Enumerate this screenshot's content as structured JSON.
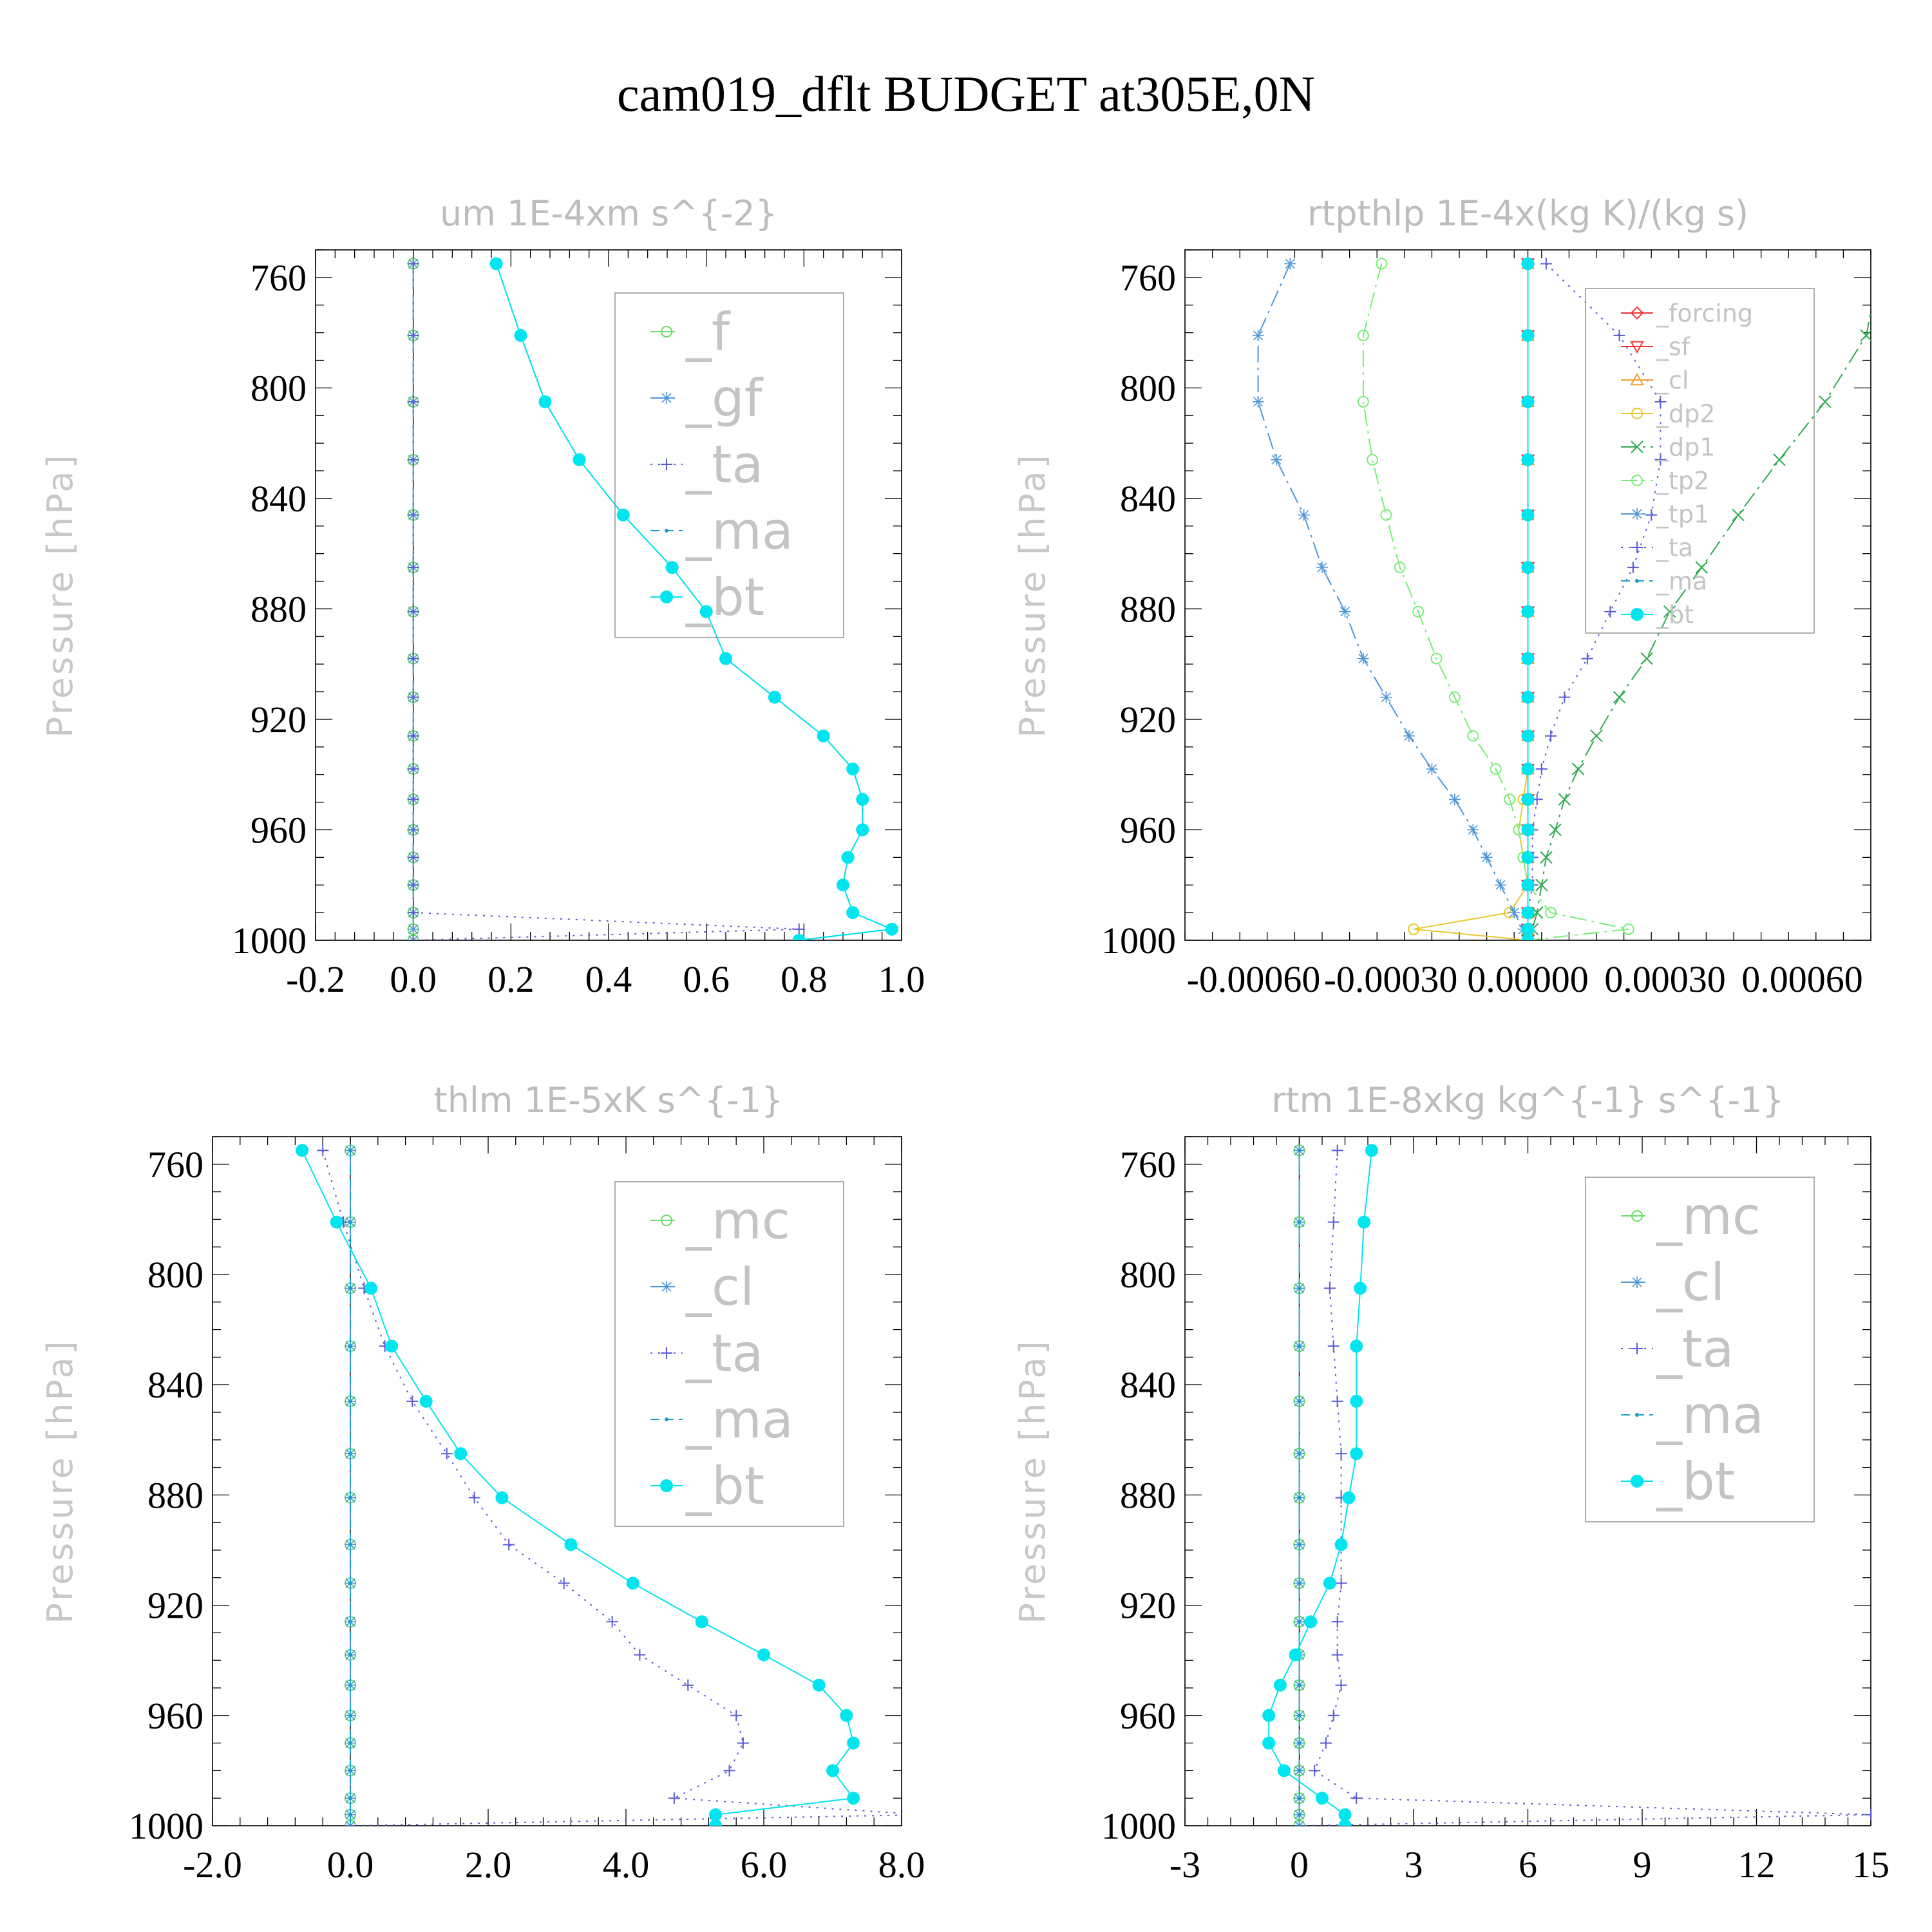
{
  "figure": {
    "title": "cam019_dflt  BUDGET at305E,0N"
  },
  "colors": {
    "green": "#66dd66",
    "steel": "#4f96d6",
    "purple": "#5b5bd6",
    "teal": "#1aa0c8",
    "cyan": "#00e5ee",
    "red": "#ee3333",
    "orange": "#f0a030",
    "yellow": "#e8c830",
    "darkgreen": "#2fa94f",
    "lightgreen": "#77ee77",
    "axis": "#000000",
    "muted_text": "#c0c0c0"
  },
  "chart_data": [
    {
      "id": "um",
      "type": "line",
      "title": "um   1E-4xm s^{-2}",
      "ylabel": "Pressure [hPa]",
      "xlim": [
        -0.2,
        1.0
      ],
      "ylim": [
        750,
        1000
      ],
      "y_inverted": true,
      "xticks": [
        -0.2,
        0.0,
        0.2,
        0.4,
        0.6,
        0.8,
        1.0
      ],
      "xtick_labels": [
        "-0.2",
        "0.0",
        "0.2",
        "0.4",
        "0.6",
        "0.8",
        "1.0"
      ],
      "yticks": [
        760,
        800,
        840,
        880,
        920,
        960,
        1000
      ],
      "ytick_labels": [
        "760",
        "800",
        "840",
        "880",
        "920",
        "960",
        "1000"
      ],
      "zero_line": true,
      "legend": {
        "position": "top-right",
        "entries": [
          "_f",
          "_gf",
          "_ta",
          "_ma",
          "_bt"
        ]
      },
      "pressure_levels": [
        755,
        781,
        805,
        826,
        846,
        865,
        881,
        898,
        912,
        926,
        938,
        949,
        960,
        970,
        980,
        990,
        996,
        1000
      ],
      "series": [
        {
          "name": "_f",
          "color": "green",
          "dash": "long",
          "marker": "circle-open",
          "values": [
            0,
            0,
            0,
            0,
            0,
            0,
            0,
            0,
            0,
            0,
            0,
            0,
            0,
            0,
            0,
            0,
            0,
            0
          ]
        },
        {
          "name": "_gf",
          "color": "steel",
          "dash": "long",
          "marker": "asterisk",
          "values": [
            0,
            0,
            0,
            0,
            0,
            0,
            0,
            0,
            0,
            0,
            0,
            0,
            0,
            0,
            0,
            0,
            0,
            0
          ]
        },
        {
          "name": "_ta",
          "color": "purple",
          "dash": "dot",
          "marker": "plus",
          "values": [
            0,
            0,
            0,
            0,
            0,
            0,
            0,
            0,
            0,
            0,
            0,
            0,
            0,
            0,
            0,
            0,
            0.79,
            0
          ]
        },
        {
          "name": "_ma",
          "color": "teal",
          "dash": "dash",
          "marker": "dot",
          "values": [
            0.17,
            0.22,
            0.27,
            0.34,
            0.43,
            0.53,
            0.6,
            0.64,
            0.74,
            0.84,
            0.9,
            0.92,
            0.92,
            0.89,
            0.88,
            0.9,
            0.98,
            0.79
          ]
        },
        {
          "name": "_bt",
          "color": "cyan",
          "dash": "solid",
          "marker": "disc",
          "values": [
            0.17,
            0.22,
            0.27,
            0.34,
            0.43,
            0.53,
            0.6,
            0.64,
            0.74,
            0.84,
            0.9,
            0.92,
            0.92,
            0.89,
            0.88,
            0.9,
            0.98,
            0.79
          ]
        }
      ]
    },
    {
      "id": "rtpthlp",
      "type": "line",
      "title": "rtpthlp   1E-4x(kg K)/(kg s)",
      "ylabel": "Pressure [hPa]",
      "xlim": [
        -0.00075,
        0.00075
      ],
      "ylim": [
        750,
        1000
      ],
      "y_inverted": true,
      "xticks": [
        -0.0006,
        -0.0003,
        0.0,
        0.0003,
        0.0006
      ],
      "xtick_labels": [
        "-0.00060",
        "-0.00030",
        "0.00000",
        "0.00030",
        "0.00060"
      ],
      "yticks": [
        760,
        800,
        840,
        880,
        920,
        960,
        1000
      ],
      "ytick_labels": [
        "760",
        "800",
        "840",
        "880",
        "920",
        "960",
        "1000"
      ],
      "zero_line": true,
      "legend": {
        "position": "top-right",
        "entries": [
          "_forcing",
          "_sf",
          "_cl",
          "_dp2",
          "_dp1",
          "_tp2",
          "_tp1",
          "_ta",
          "_ma",
          "_bt"
        ]
      },
      "pressure_levels": [
        755,
        781,
        805,
        826,
        846,
        865,
        881,
        898,
        912,
        926,
        938,
        949,
        960,
        970,
        980,
        990,
        996,
        1000
      ],
      "series": [
        {
          "name": "_forcing",
          "color": "red",
          "dash": "solid",
          "marker": "diamond",
          "values": [
            0,
            0,
            0,
            0,
            0,
            0,
            0,
            0,
            0,
            0,
            0,
            0,
            0,
            0,
            0,
            0,
            0,
            0
          ]
        },
        {
          "name": "_sf",
          "color": "red",
          "dash": "solid",
          "marker": "triangle-down",
          "values": [
            0,
            0,
            0,
            0,
            0,
            0,
            0,
            0,
            0,
            0,
            0,
            0,
            0,
            0,
            0,
            0,
            0,
            0
          ]
        },
        {
          "name": "_cl",
          "color": "orange",
          "dash": "solid",
          "marker": "triangle-up",
          "values": [
            0,
            0,
            0,
            0,
            0,
            0,
            0,
            0,
            0,
            0,
            0,
            0,
            0,
            0,
            0,
            0,
            0,
            0
          ]
        },
        {
          "name": "_dp2",
          "color": "yellow",
          "dash": "solid",
          "marker": "circle-open",
          "values": [
            0,
            0,
            0,
            0,
            0,
            0,
            0,
            0,
            0,
            0,
            0,
            -1e-05,
            -2e-05,
            -1e-05,
            0,
            -4e-05,
            -0.00025,
            0
          ]
        },
        {
          "name": "_dp1",
          "color": "darkgreen",
          "dash": "dashdot",
          "marker": "cross",
          "values": [
            0.00077,
            0.00074,
            0.00065,
            0.00055,
            0.00046,
            0.00038,
            0.00031,
            0.00026,
            0.0002,
            0.00015,
            0.00011,
            8e-05,
            6e-05,
            4e-05,
            3e-05,
            2e-05,
            1e-05,
            0
          ]
        },
        {
          "name": "_tp2",
          "color": "lightgreen",
          "dash": "dashdot",
          "marker": "circle-open",
          "values": [
            -0.00032,
            -0.00036,
            -0.00036,
            -0.00034,
            -0.00031,
            -0.00028,
            -0.00024,
            -0.0002,
            -0.00016,
            -0.00012,
            -7e-05,
            -4e-05,
            -2e-05,
            -1e-05,
            0,
            5e-05,
            0.00022,
            0
          ]
        },
        {
          "name": "_tp1",
          "color": "steel",
          "dash": "dashdot",
          "marker": "asterisk",
          "values": [
            -0.00052,
            -0.00059,
            -0.00059,
            -0.00055,
            -0.00049,
            -0.00045,
            -0.0004,
            -0.00036,
            -0.00031,
            -0.00026,
            -0.00021,
            -0.00016,
            -0.00012,
            -9e-05,
            -6e-05,
            -3e-05,
            -1e-05,
            0
          ]
        },
        {
          "name": "_ta",
          "color": "purple",
          "dash": "dot",
          "marker": "plus",
          "values": [
            4e-05,
            0.0002,
            0.00029,
            0.00029,
            0.00027,
            0.00023,
            0.00018,
            0.00013,
            8e-05,
            5e-05,
            3e-05,
            2e-05,
            1e-05,
            1e-05,
            1e-05,
            0,
            0,
            0
          ]
        },
        {
          "name": "_ma",
          "color": "teal",
          "dash": "dash",
          "marker": "dot",
          "values": [
            0,
            0,
            0,
            0,
            0,
            0,
            0,
            0,
            0,
            0,
            0,
            0,
            0,
            0,
            0,
            0,
            0,
            0
          ]
        },
        {
          "name": "_bt",
          "color": "cyan",
          "dash": "solid",
          "marker": "disc",
          "values": [
            0,
            0,
            0,
            0,
            0,
            0,
            0,
            0,
            0,
            0,
            0,
            0,
            0,
            0,
            0,
            0,
            0,
            0
          ]
        }
      ]
    },
    {
      "id": "thlm",
      "type": "line",
      "title": "thlm   1E-5xK s^{-1}",
      "ylabel": "Pressure [hPa]",
      "xlim": [
        -2.0,
        8.0
      ],
      "ylim": [
        750,
        1000
      ],
      "y_inverted": true,
      "xticks": [
        -2.0,
        0.0,
        2.0,
        4.0,
        6.0,
        8.0
      ],
      "xtick_labels": [
        "-2.0",
        "0.0",
        "2.0",
        "4.0",
        "6.0",
        "8.0"
      ],
      "yticks": [
        760,
        800,
        840,
        880,
        920,
        960,
        1000
      ],
      "ytick_labels": [
        "760",
        "800",
        "840",
        "880",
        "920",
        "960",
        "1000"
      ],
      "zero_line": true,
      "legend": {
        "position": "top-right",
        "entries": [
          "_mc",
          "_cl",
          "_ta",
          "_ma",
          "_bt"
        ]
      },
      "pressure_levels": [
        755,
        781,
        805,
        826,
        846,
        865,
        881,
        898,
        912,
        926,
        938,
        949,
        960,
        970,
        980,
        990,
        996,
        1000
      ],
      "series": [
        {
          "name": "_mc",
          "color": "green",
          "dash": "long",
          "marker": "circle-open",
          "values": [
            0,
            0,
            0,
            0,
            0,
            0,
            0,
            0,
            0,
            0,
            0,
            0,
            0,
            0,
            0,
            0,
            0,
            0
          ]
        },
        {
          "name": "_cl",
          "color": "steel",
          "dash": "long",
          "marker": "asterisk",
          "values": [
            0,
            0,
            0,
            0,
            0,
            0,
            0,
            0,
            0,
            0,
            0,
            0,
            0,
            0,
            0,
            0,
            0,
            0
          ]
        },
        {
          "name": "_ta",
          "color": "purple",
          "dash": "dot",
          "marker": "plus",
          "values": [
            -0.4,
            -0.1,
            0.2,
            0.5,
            0.9,
            1.4,
            1.8,
            2.3,
            3.1,
            3.8,
            4.2,
            4.9,
            5.6,
            5.7,
            5.5,
            4.7,
            8.3,
            0
          ]
        },
        {
          "name": "_ma",
          "color": "teal",
          "dash": "dash",
          "marker": "dot",
          "values": [
            0,
            0,
            0,
            0,
            0,
            0,
            0,
            0,
            0,
            0,
            0,
            0,
            0,
            0,
            0,
            0,
            0,
            0
          ]
        },
        {
          "name": "_bt",
          "color": "cyan",
          "dash": "solid",
          "marker": "disc",
          "values": [
            -0.7,
            -0.2,
            0.3,
            0.6,
            1.1,
            1.6,
            2.2,
            3.2,
            4.1,
            5.1,
            6.0,
            6.8,
            7.2,
            7.3,
            7.0,
            7.3,
            5.3,
            5.3
          ]
        }
      ]
    },
    {
      "id": "rtm",
      "type": "line",
      "title": "rtm   1E-8xkg kg^{-1} s^{-1}",
      "ylabel": "Pressure [hPa]",
      "xlim": [
        -3,
        15
      ],
      "ylim": [
        750,
        1000
      ],
      "y_inverted": true,
      "xticks": [
        -3,
        0,
        3,
        6,
        9,
        12,
        15
      ],
      "xtick_labels": [
        "-3",
        "0",
        "3",
        "6",
        "9",
        "12",
        "15"
      ],
      "yticks": [
        760,
        800,
        840,
        880,
        920,
        960,
        1000
      ],
      "ytick_labels": [
        "760",
        "800",
        "840",
        "880",
        "920",
        "960",
        "1000"
      ],
      "zero_line": true,
      "legend": {
        "position": "top-right",
        "entries": [
          "_mc",
          "_cl",
          "_ta",
          "_ma",
          "_bt"
        ]
      },
      "pressure_levels": [
        755,
        781,
        805,
        826,
        846,
        865,
        881,
        898,
        912,
        926,
        938,
        949,
        960,
        970,
        980,
        990,
        996,
        1000
      ],
      "series": [
        {
          "name": "_mc",
          "color": "green",
          "dash": "long",
          "marker": "circle-open",
          "values": [
            0,
            0,
            0,
            0,
            0,
            0,
            0,
            0,
            0,
            0,
            0,
            0,
            0,
            0,
            0,
            0,
            0,
            0
          ]
        },
        {
          "name": "_cl",
          "color": "steel",
          "dash": "long",
          "marker": "asterisk",
          "values": [
            0,
            0,
            0,
            0,
            0,
            0,
            0,
            0,
            0,
            0,
            0,
            0,
            0,
            0,
            0,
            0,
            0,
            0
          ]
        },
        {
          "name": "_ta",
          "color": "purple",
          "dash": "dot",
          "marker": "plus",
          "values": [
            1.0,
            0.9,
            0.8,
            0.9,
            1.0,
            1.1,
            1.1,
            1.1,
            1.1,
            1.0,
            1.0,
            1.1,
            0.9,
            0.7,
            0.4,
            1.5,
            15.0,
            0
          ]
        },
        {
          "name": "_ma",
          "color": "teal",
          "dash": "dash",
          "marker": "dot",
          "values": [
            0,
            0,
            0,
            0,
            0,
            0,
            0,
            0,
            0,
            0,
            0,
            0,
            0,
            0,
            0,
            0,
            0,
            0
          ]
        },
        {
          "name": "_bt",
          "color": "cyan",
          "dash": "solid",
          "marker": "disc",
          "values": [
            1.9,
            1.7,
            1.6,
            1.5,
            1.5,
            1.5,
            1.3,
            1.1,
            0.8,
            0.3,
            -0.1,
            -0.5,
            -0.8,
            -0.8,
            -0.4,
            0.6,
            1.2,
            1.2
          ]
        }
      ]
    }
  ]
}
